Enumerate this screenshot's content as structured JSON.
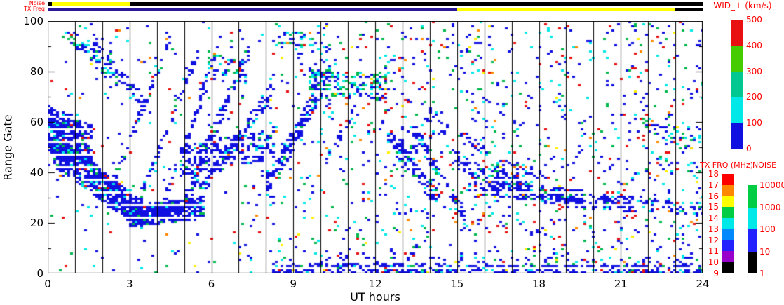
{
  "chart_data": {
    "type": "heatmap",
    "title": "WID_⊥ (km/s)",
    "description": "SuperDARN-style range-time parameter plot of perpendicular spectral width vs UT. Dense blue echo band descends from range gate ~60 at 00 UT to ~25 by 03 UT, ascending striations 03-08 UT reach gates 80-100, ascending band 08-10 UT, high-gate mixed patch (gates ~70-82) 10-12 UT, descending bands 12-15 UT, low patchy bands (gates ~25-40) 15-24 UT, near-range echoes (gates 0-5) after 08 UT, sparse multicolor scatter throughout.",
    "xlabel": "UT hours",
    "ylabel": "Range Gate",
    "xlim": [
      0,
      24
    ],
    "ylim": [
      0,
      100
    ],
    "x_ticks": [
      0,
      3,
      6,
      9,
      12,
      15,
      18,
      21,
      24
    ],
    "y_ticks": [
      0,
      20,
      40,
      60,
      80,
      100
    ],
    "grid": "vertical line every 1 hour",
    "seed": 1337,
    "palettes": {
      "band": [
        {
          "c": "#1010e0",
          "w": 0.86
        },
        {
          "c": "#00e8e8",
          "w": 0.07
        },
        {
          "c": "#00b84c",
          "w": 0.05
        },
        {
          "c": "#e81010",
          "w": 0.02
        }
      ],
      "mixed": [
        {
          "c": "#1010e0",
          "w": 0.4
        },
        {
          "c": "#00e8e8",
          "w": 0.28
        },
        {
          "c": "#00b84c",
          "w": 0.22
        },
        {
          "c": "#e81010",
          "w": 0.06
        },
        {
          "c": "#ffd800",
          "w": 0.04
        }
      ],
      "scatter": [
        {
          "c": "#1010e0",
          "w": 0.46
        },
        {
          "c": "#00e8e8",
          "w": 0.18
        },
        {
          "c": "#00b84c",
          "w": 0.14
        },
        {
          "c": "#e81010",
          "w": 0.14
        },
        {
          "c": "#ff8800",
          "w": 0.04
        },
        {
          "c": "#ffee00",
          "w": 0.04
        }
      ]
    },
    "bands": [
      {
        "x0": 0.0,
        "x1": 1.5,
        "g0": 58,
        "g1": 50,
        "hw": 9,
        "d": 0.7
      },
      {
        "x0": 0.2,
        "x1": 3.4,
        "g0": 49,
        "g1": 24,
        "hw": 6,
        "d": 0.75
      },
      {
        "x0": 3.0,
        "x1": 5.7,
        "g0": 23,
        "g1": 27,
        "hw": 4,
        "d": 0.8
      },
      {
        "x0": 0.5,
        "x1": 2.5,
        "g0": 97,
        "g1": 78,
        "hw": 3,
        "d": 0.4,
        "pal": "mixed"
      },
      {
        "x0": 1.6,
        "x1": 3.5,
        "g0": 93,
        "g1": 68,
        "hw": 2.5,
        "d": 0.4
      },
      {
        "x0": 2.2,
        "x1": 4.4,
        "g0": 32,
        "g1": 92,
        "hw": 2,
        "d": 0.5
      },
      {
        "x0": 3.1,
        "x1": 5.4,
        "g0": 24,
        "g1": 88,
        "hw": 2,
        "d": 0.5
      },
      {
        "x0": 4.1,
        "x1": 6.3,
        "g0": 26,
        "g1": 92,
        "hw": 2.5,
        "d": 0.5
      },
      {
        "x0": 5.0,
        "x1": 7.3,
        "g0": 30,
        "g1": 88,
        "hw": 3,
        "d": 0.55
      },
      {
        "x0": 5.6,
        "x1": 8.1,
        "g0": 33,
        "g1": 72,
        "hw": 3,
        "d": 0.5
      },
      {
        "x0": 4.8,
        "x1": 8.2,
        "g0": 45,
        "g1": 52,
        "hw": 6,
        "d": 0.4
      },
      {
        "x0": 5.9,
        "x1": 7.2,
        "g0": 86,
        "g1": 80,
        "hw": 4,
        "d": 0.35,
        "pal": "mixed"
      },
      {
        "x0": 8.0,
        "x1": 10.1,
        "g0": 36,
        "g1": 76,
        "hw": 4,
        "d": 0.65
      },
      {
        "x0": 8.3,
        "x1": 10.6,
        "g0": 95,
        "g1": 88,
        "hw": 4,
        "d": 0.15,
        "pal": "mixed"
      },
      {
        "x0": 9.6,
        "x1": 12.3,
        "g0": 77,
        "g1": 74,
        "hw": 5,
        "d": 0.45,
        "pal": "mixed"
      },
      {
        "x0": 10.2,
        "x1": 11.3,
        "g0": 45,
        "g1": 68,
        "hw": 2,
        "d": 0.3
      },
      {
        "x0": 12.4,
        "x1": 14.3,
        "g0": 56,
        "g1": 30,
        "hw": 3,
        "d": 0.55
      },
      {
        "x0": 13.4,
        "x1": 15.2,
        "g0": 58,
        "g1": 24,
        "hw": 2.5,
        "d": 0.5
      },
      {
        "x0": 12.6,
        "x1": 13.5,
        "g0": 50,
        "g1": 47,
        "hw": 4,
        "d": 0.35
      },
      {
        "x0": 13.8,
        "x1": 14.6,
        "g0": 64,
        "g1": 58,
        "hw": 2.5,
        "d": 0.3
      },
      {
        "x0": 14.8,
        "x1": 17.6,
        "g0": 46,
        "g1": 34,
        "hw": 3,
        "d": 0.45
      },
      {
        "x0": 15.1,
        "x1": 16.0,
        "g0": 55,
        "g1": 50,
        "hw": 2.5,
        "d": 0.3
      },
      {
        "x0": 15.4,
        "x1": 19.5,
        "g0": 36,
        "g1": 30,
        "hw": 3,
        "d": 0.4
      },
      {
        "x0": 16.5,
        "x1": 18.2,
        "g0": 44,
        "g1": 38,
        "hw": 2.5,
        "d": 0.3
      },
      {
        "x0": 18.0,
        "x1": 21.6,
        "g0": 31,
        "g1": 28,
        "hw": 3,
        "d": 0.35
      },
      {
        "x0": 20.0,
        "x1": 23.9,
        "g0": 30,
        "g1": 26,
        "hw": 2.5,
        "d": 0.25
      },
      {
        "x0": 21.8,
        "x1": 23.6,
        "g0": 60,
        "g1": 52,
        "hw": 3,
        "d": 0.25,
        "pal": "mixed"
      },
      {
        "x0": 22.3,
        "x1": 23.9,
        "g0": 45,
        "g1": 40,
        "hw": 3,
        "d": 0.2,
        "pal": "mixed"
      },
      {
        "x0": 8.2,
        "x1": 24.0,
        "g0": 1,
        "g1": 1,
        "hw": 2,
        "d": 0.5
      },
      {
        "x0": 9.5,
        "x1": 15.0,
        "g0": 3,
        "g1": 2,
        "hw": 2,
        "d": 0.3
      },
      {
        "x0": 8.2,
        "x1": 24.0,
        "g0": 6,
        "g1": 4,
        "hw": 3,
        "d": 0.1
      }
    ],
    "scatter": [
      {
        "count": 700,
        "pal": "scatter",
        "x0": 0,
        "x1": 24,
        "g0": 0,
        "g1": 100
      },
      {
        "count": 600,
        "pal": "scatter",
        "x0": 12,
        "x1": 24,
        "g0": 0,
        "g1": 100
      },
      {
        "count": 150,
        "pal": "scatter",
        "x0": 8,
        "x1": 12,
        "g0": 0,
        "g1": 100
      }
    ],
    "strips": {
      "noise": {
        "label": "Noise",
        "segments": [
          {
            "x0": 0.0,
            "x1": 0.15,
            "color": "#000000"
          },
          {
            "x0": 0.15,
            "x1": 3.0,
            "color": "#ffff00"
          },
          {
            "x0": 3.0,
            "x1": 24.0,
            "color": "#000000"
          }
        ]
      },
      "tx": {
        "label": "TX Freq",
        "segments": [
          {
            "x0": 0.0,
            "x1": 15.0,
            "color": "#2a1899"
          },
          {
            "x0": 15.0,
            "x1": 23.0,
            "color": "#ffff00"
          },
          {
            "x0": 23.0,
            "x1": 24.0,
            "color": "#000000"
          }
        ]
      }
    },
    "colorbars": [
      {
        "id": "wid",
        "title": "WID_⊥ (km/s)",
        "ticks": [
          "0",
          "100",
          "200",
          "300",
          "400",
          "500"
        ],
        "colors": [
          "#1010e0",
          "#00e8e8",
          "#00c890",
          "#44cc00",
          "#e81010"
        ]
      },
      {
        "id": "tx",
        "title": "TX FRQ (MHz)",
        "ticks": [
          "9",
          "10",
          "11",
          "12",
          "13",
          "14",
          "15",
          "16",
          "17",
          "18"
        ],
        "colors": [
          "#000000",
          "#9900cc",
          "#2222ff",
          "#0088ff",
          "#00e8e8",
          "#00cc44",
          "#ffff00",
          "#ff8800",
          "#ff0000"
        ]
      },
      {
        "id": "noise",
        "title": "NOISE",
        "ticks": [
          "1",
          "10",
          "100",
          "1000",
          "10000"
        ],
        "colors": [
          "#000000",
          "#2222ff",
          "#00e8e8",
          "#00cc44"
        ]
      }
    ]
  }
}
